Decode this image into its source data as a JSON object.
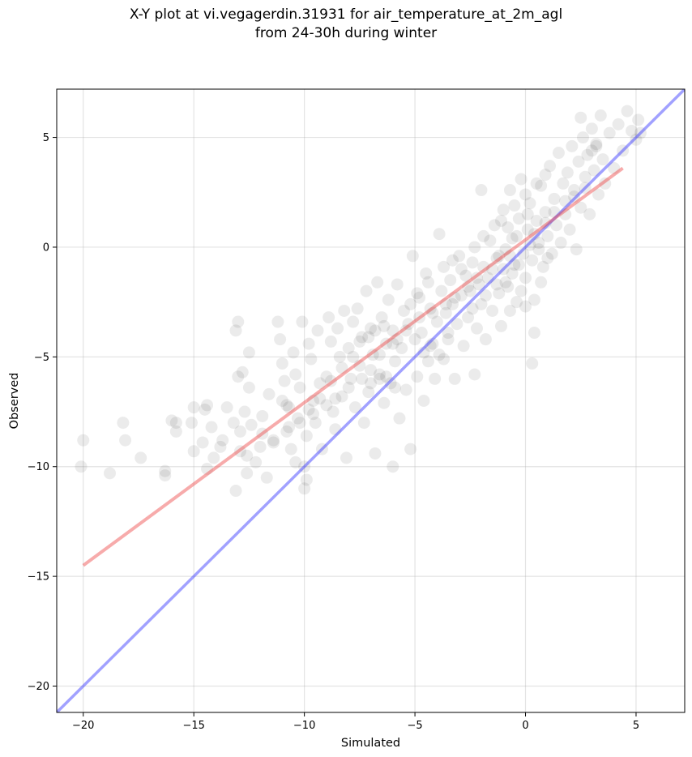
{
  "chart_data": {
    "type": "scatter",
    "title_line1": "X-Y plot at vi.vegagerdin.31931 for air_temperature_at_2m_agl",
    "title_line2": "from 24-30h during winter",
    "xlabel": "Simulated",
    "ylabel": "Observed",
    "xlim": [
      -21.2,
      7.2
    ],
    "ylim": [
      -21.2,
      7.2
    ],
    "xticks": [
      -20,
      -15,
      -10,
      -5,
      0,
      5
    ],
    "yticks": [
      -20,
      -15,
      -10,
      -5,
      0,
      5
    ],
    "xtick_labels": [
      "−20",
      "−15",
      "−10",
      "−5",
      "0",
      "5"
    ],
    "ytick_labels": [
      "−20",
      "−15",
      "−10",
      "−5",
      "0",
      "5"
    ],
    "grid": true,
    "point_color": "#000000",
    "point_alpha": 0.08,
    "fit_line": {
      "color": "#ee4444",
      "x": [
        -20,
        4.4
      ],
      "y": [
        -14.5,
        3.6
      ]
    },
    "identity_line": {
      "color": "#4444ff",
      "x": [
        -21.2,
        7.2
      ],
      "y": [
        -21.2,
        7.2
      ]
    },
    "points": [
      [
        -20.0,
        -8.8
      ],
      [
        -20.1,
        -10.0
      ],
      [
        -18.8,
        -10.3
      ],
      [
        -18.2,
        -8.0
      ],
      [
        -18.1,
        -8.8
      ],
      [
        -17.4,
        -9.6
      ],
      [
        -16.3,
        -10.2
      ],
      [
        -16.3,
        -10.4
      ],
      [
        -16.0,
        -7.9
      ],
      [
        -15.8,
        -8.0
      ],
      [
        -15.8,
        -8.4
      ],
      [
        -15.1,
        -8.0
      ],
      [
        -15.0,
        -7.3
      ],
      [
        -15.0,
        -9.3
      ],
      [
        -14.6,
        -8.9
      ],
      [
        -14.5,
        -7.4
      ],
      [
        -14.4,
        -7.2
      ],
      [
        -14.4,
        -10.1
      ],
      [
        -14.2,
        -8.2
      ],
      [
        -14.1,
        -9.6
      ],
      [
        -13.8,
        -9.1
      ],
      [
        -13.7,
        -8.8
      ],
      [
        -13.5,
        -7.3
      ],
      [
        -13.1,
        -11.1
      ],
      [
        -13.2,
        -8.0
      ],
      [
        -13.1,
        -3.8
      ],
      [
        -13.0,
        -3.4
      ],
      [
        -13.0,
        -5.9
      ],
      [
        -12.8,
        -5.7
      ],
      [
        -12.9,
        -8.4
      ],
      [
        -12.7,
        -7.5
      ],
      [
        -12.6,
        -10.3
      ],
      [
        -12.5,
        -4.8
      ],
      [
        -12.5,
        -6.4
      ],
      [
        -12.2,
        -9.8
      ],
      [
        -11.9,
        -8.5
      ],
      [
        -11.7,
        -10.5
      ],
      [
        -11.6,
        -6.7
      ],
      [
        -11.4,
        -8.9
      ],
      [
        -11.2,
        -3.4
      ],
      [
        -11.1,
        -4.2
      ],
      [
        -11.0,
        -5.3
      ],
      [
        -10.9,
        -6.1
      ],
      [
        -10.8,
        -7.2
      ],
      [
        -10.7,
        -8.2
      ],
      [
        -10.6,
        -9.2
      ],
      [
        -10.5,
        -4.8
      ],
      [
        -10.4,
        -5.8
      ],
      [
        -10.3,
        -7.8
      ],
      [
        -10.2,
        -6.4
      ],
      [
        -10.1,
        -3.4
      ],
      [
        -10.0,
        -10.0
      ],
      [
        -10.0,
        -11.0
      ],
      [
        -9.9,
        -10.6
      ],
      [
        -9.8,
        -4.4
      ],
      [
        -9.7,
        -5.1
      ],
      [
        -9.6,
        -7.0
      ],
      [
        -9.5,
        -8.0
      ],
      [
        -9.4,
        -3.8
      ],
      [
        -9.3,
        -6.2
      ],
      [
        -9.2,
        -9.2
      ],
      [
        -9.0,
        -5.9
      ],
      [
        -8.9,
        -3.2
      ],
      [
        -8.8,
        -4.3
      ],
      [
        -8.7,
        -7.5
      ],
      [
        -8.6,
        -8.3
      ],
      [
        -8.5,
        -3.7
      ],
      [
        -8.4,
        -5.0
      ],
      [
        -8.3,
        -6.8
      ],
      [
        -8.2,
        -2.9
      ],
      [
        -8.1,
        -9.6
      ],
      [
        -8.0,
        -4.6
      ],
      [
        -7.9,
        -6.0
      ],
      [
        -7.8,
        -3.4
      ],
      [
        -7.7,
        -7.3
      ],
      [
        -7.6,
        -2.8
      ],
      [
        -7.5,
        -5.4
      ],
      [
        -7.4,
        -4.1
      ],
      [
        -7.3,
        -8.0
      ],
      [
        -7.2,
        -2.0
      ],
      [
        -7.1,
        -6.6
      ],
      [
        -7.0,
        -3.7
      ],
      [
        -6.9,
        -4.9
      ],
      [
        -6.8,
        -9.4
      ],
      [
        -6.7,
        -1.6
      ],
      [
        -6.6,
        -5.8
      ],
      [
        -6.5,
        -3.2
      ],
      [
        -6.4,
        -7.1
      ],
      [
        -6.3,
        -4.4
      ],
      [
        -6.2,
        -2.4
      ],
      [
        -6.1,
        -6.2
      ],
      [
        -6.0,
        -10.0
      ],
      [
        -6.0,
        -3.8
      ],
      [
        -5.9,
        -5.2
      ],
      [
        -5.8,
        -1.7
      ],
      [
        -5.7,
        -7.8
      ],
      [
        -5.6,
        -4.6
      ],
      [
        -5.5,
        -2.9
      ],
      [
        -5.4,
        -6.5
      ],
      [
        -5.3,
        -3.5
      ],
      [
        -5.2,
        -9.2
      ],
      [
        -5.1,
        -0.4
      ],
      [
        -5.0,
        -4.2
      ],
      [
        -4.9,
        -5.9
      ],
      [
        -4.8,
        -2.3
      ],
      [
        -4.7,
        -3.9
      ],
      [
        -4.6,
        -7.0
      ],
      [
        -4.5,
        -1.2
      ],
      [
        -4.4,
        -5.2
      ],
      [
        -4.3,
        -2.8
      ],
      [
        -4.2,
        -4.4
      ],
      [
        -4.1,
        -6.0
      ],
      [
        -4.0,
        -3.4
      ],
      [
        -3.9,
        0.6
      ],
      [
        -3.8,
        -2.0
      ],
      [
        -3.7,
        -5.1
      ],
      [
        -3.6,
        -3.0
      ],
      [
        -3.5,
        -4.2
      ],
      [
        -3.4,
        -1.5
      ],
      [
        -3.3,
        -2.6
      ],
      [
        -3.2,
        -6.0
      ],
      [
        -3.1,
        -3.5
      ],
      [
        -3.0,
        -0.4
      ],
      [
        -2.9,
        -2.2
      ],
      [
        -2.8,
        -4.5
      ],
      [
        -2.7,
        -1.3
      ],
      [
        -2.6,
        -3.2
      ],
      [
        -2.5,
        -2.0
      ],
      [
        -2.4,
        -0.7
      ],
      [
        -2.3,
        -5.8
      ],
      [
        -2.2,
        -3.7
      ],
      [
        -2.1,
        -1.7
      ],
      [
        -2.0,
        2.6
      ],
      [
        -2.0,
        -2.6
      ],
      [
        -1.9,
        -0.9
      ],
      [
        -1.8,
        -4.2
      ],
      [
        -1.7,
        -1.4
      ],
      [
        -1.6,
        0.3
      ],
      [
        -1.5,
        -2.9
      ],
      [
        -1.4,
        1.0
      ],
      [
        -1.3,
        -0.5
      ],
      [
        -1.2,
        -2.1
      ],
      [
        -1.1,
        -3.6
      ],
      [
        -1.0,
        1.7
      ],
      [
        -1.0,
        -1.0
      ],
      [
        -0.9,
        -0.1
      ],
      [
        -0.8,
        -1.8
      ],
      [
        -0.7,
        2.6
      ],
      [
        -0.6,
        0.4
      ],
      [
        -0.5,
        -0.8
      ],
      [
        -0.4,
        -2.5
      ],
      [
        -0.3,
        1.3
      ],
      [
        -0.2,
        3.1
      ],
      [
        -0.1,
        -0.3
      ],
      [
        0.0,
        -1.4
      ],
      [
        0.1,
        0.8
      ],
      [
        0.2,
        2.0
      ],
      [
        0.3,
        -0.6
      ],
      [
        0.4,
        -2.4
      ],
      [
        0.4,
        -3.9
      ],
      [
        0.3,
        -5.3
      ],
      [
        0.5,
        1.2
      ],
      [
        0.6,
        0.2
      ],
      [
        0.7,
        2.8
      ],
      [
        0.8,
        -0.9
      ],
      [
        0.9,
        1.6
      ],
      [
        1.0,
        0.5
      ],
      [
        1.1,
        3.7
      ],
      [
        1.2,
        -0.3
      ],
      [
        1.3,
        2.2
      ],
      [
        1.4,
        1.0
      ],
      [
        1.5,
        4.3
      ],
      [
        1.6,
        0.2
      ],
      [
        1.7,
        2.9
      ],
      [
        1.8,
        1.5
      ],
      [
        1.9,
        3.4
      ],
      [
        2.0,
        0.8
      ],
      [
        2.1,
        4.6
      ],
      [
        2.2,
        2.3
      ],
      [
        2.3,
        -0.1
      ],
      [
        2.4,
        3.9
      ],
      [
        2.5,
        1.8
      ],
      [
        2.6,
        5.0
      ],
      [
        2.7,
        2.7
      ],
      [
        2.8,
        4.2
      ],
      [
        2.9,
        1.5
      ],
      [
        3.0,
        5.4
      ],
      [
        3.1,
        3.5
      ],
      [
        3.2,
        4.7
      ],
      [
        3.3,
        2.4
      ],
      [
        3.4,
        6.0
      ],
      [
        3.5,
        4.0
      ],
      [
        3.6,
        2.9
      ],
      [
        3.8,
        5.2
      ],
      [
        4.0,
        3.6
      ],
      [
        4.2,
        5.6
      ],
      [
        4.4,
        4.4
      ],
      [
        4.6,
        6.2
      ],
      [
        4.8,
        5.3
      ],
      [
        5.0,
        4.9
      ],
      [
        5.1,
        5.8
      ],
      [
        5.2,
        5.2
      ],
      [
        2.5,
        5.9
      ],
      [
        1.0,
        -0.5
      ],
      [
        -0.3,
        -0.8
      ],
      [
        -0.6,
        -1.2
      ],
      [
        -0.9,
        -1.6
      ],
      [
        0.2,
        0.1
      ],
      [
        -0.4,
        0.5
      ],
      [
        0.6,
        -0.1
      ],
      [
        -1.2,
        -0.4
      ],
      [
        -1.5,
        -1.0
      ],
      [
        -0.8,
        0.9
      ],
      [
        0.1,
        1.5
      ],
      [
        -2.2,
        -1.4
      ],
      [
        -2.6,
        -1.8
      ],
      [
        -3.2,
        -2.3
      ],
      [
        -3.6,
        -2.6
      ],
      [
        -4.2,
        -3.0
      ],
      [
        -4.8,
        -3.2
      ],
      [
        -5.4,
        -3.8
      ],
      [
        -6.0,
        -4.4
      ],
      [
        -6.6,
        -4.9
      ],
      [
        -7.0,
        -5.6
      ],
      [
        -7.4,
        -6.0
      ],
      [
        -8.0,
        -6.4
      ],
      [
        -8.6,
        -6.9
      ],
      [
        -9.0,
        -7.2
      ],
      [
        -9.6,
        -7.6
      ],
      [
        -10.2,
        -8.0
      ],
      [
        -10.8,
        -8.4
      ],
      [
        -11.4,
        -8.8
      ],
      [
        -12.0,
        -9.1
      ],
      [
        -12.6,
        -9.5
      ],
      [
        -6.8,
        -3.8
      ],
      [
        -7.1,
        -4.1
      ],
      [
        -6.4,
        -3.6
      ],
      [
        -5.8,
        -4.2
      ],
      [
        -6.3,
        -5.9
      ],
      [
        -6.6,
        -6.0
      ],
      [
        -7.0,
        -6.2
      ],
      [
        -5.9,
        -6.4
      ],
      [
        -4.6,
        -4.8
      ],
      [
        -4.3,
        -4.5
      ],
      [
        -3.9,
        -4.9
      ],
      [
        -3.5,
        -3.9
      ],
      [
        -2.4,
        -2.8
      ],
      [
        -1.8,
        -2.2
      ],
      [
        -1.3,
        -1.7
      ],
      [
        -0.7,
        -0.4
      ],
      [
        0.4,
        0.6
      ],
      [
        0.9,
        1.1
      ],
      [
        1.3,
        1.6
      ],
      [
        1.8,
        2.1
      ],
      [
        2.2,
        2.6
      ],
      [
        2.7,
        3.2
      ],
      [
        3.0,
        4.4
      ],
      [
        3.2,
        4.6
      ],
      [
        -11.0,
        -7.0
      ],
      [
        -10.7,
        -7.3
      ],
      [
        -9.8,
        -7.4
      ],
      [
        -9.3,
        -6.9
      ],
      [
        -8.8,
        -6.1
      ],
      [
        -8.3,
        -5.5
      ],
      [
        -7.8,
        -5.0
      ],
      [
        -7.5,
        -4.3
      ],
      [
        -12.9,
        -9.3
      ],
      [
        -12.4,
        -8.1
      ],
      [
        -11.9,
        -7.7
      ],
      [
        -10.4,
        -9.8
      ],
      [
        -9.9,
        -8.6
      ],
      [
        -5.2,
        -2.6
      ],
      [
        -4.9,
        -2.1
      ],
      [
        -4.4,
        -1.6
      ],
      [
        -3.7,
        -0.9
      ],
      [
        -3.3,
        -0.6
      ],
      [
        -2.9,
        -1.0
      ],
      [
        -2.3,
        0.0
      ],
      [
        -1.9,
        0.5
      ],
      [
        -1.1,
        1.2
      ],
      [
        -0.5,
        1.9
      ],
      [
        0.0,
        2.4
      ],
      [
        0.5,
        2.9
      ],
      [
        0.9,
        3.3
      ],
      [
        -0.2,
        -2.0
      ],
      [
        -0.7,
        -2.9
      ],
      [
        0.0,
        -2.7
      ],
      [
        0.7,
        -1.6
      ]
    ]
  }
}
